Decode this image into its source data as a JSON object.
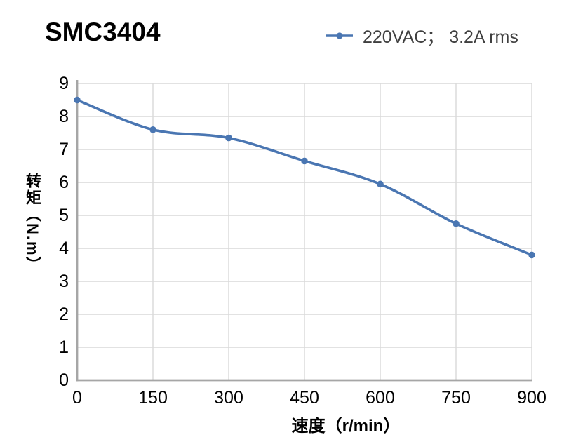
{
  "title": "SMC3404",
  "chart_data": {
    "type": "line",
    "title": "SMC3404",
    "series": [
      {
        "name": "220VAC； 3.2A rms",
        "x": [
          0,
          150,
          300,
          450,
          600,
          750,
          900
        ],
        "values": [
          8.5,
          7.6,
          7.35,
          6.65,
          5.95,
          4.75,
          3.8
        ]
      }
    ],
    "xlabel": "速度（r/min）",
    "ylabel": "转矩（N.m）",
    "xlim": [
      0,
      900
    ],
    "ylim": [
      0,
      9
    ],
    "xticks": [
      0,
      150,
      300,
      450,
      600,
      750,
      900
    ],
    "yticks": [
      0,
      1,
      2,
      3,
      4,
      5,
      6,
      7,
      8,
      9
    ],
    "grid": true,
    "smooth": true,
    "legend_position": "top-right",
    "colors": {
      "line": "#4a76b2",
      "grid": "#d9d9d9",
      "axis": "#a6a6a6",
      "tick_text": "#000000",
      "legend_text": "#3f3f3f"
    }
  }
}
